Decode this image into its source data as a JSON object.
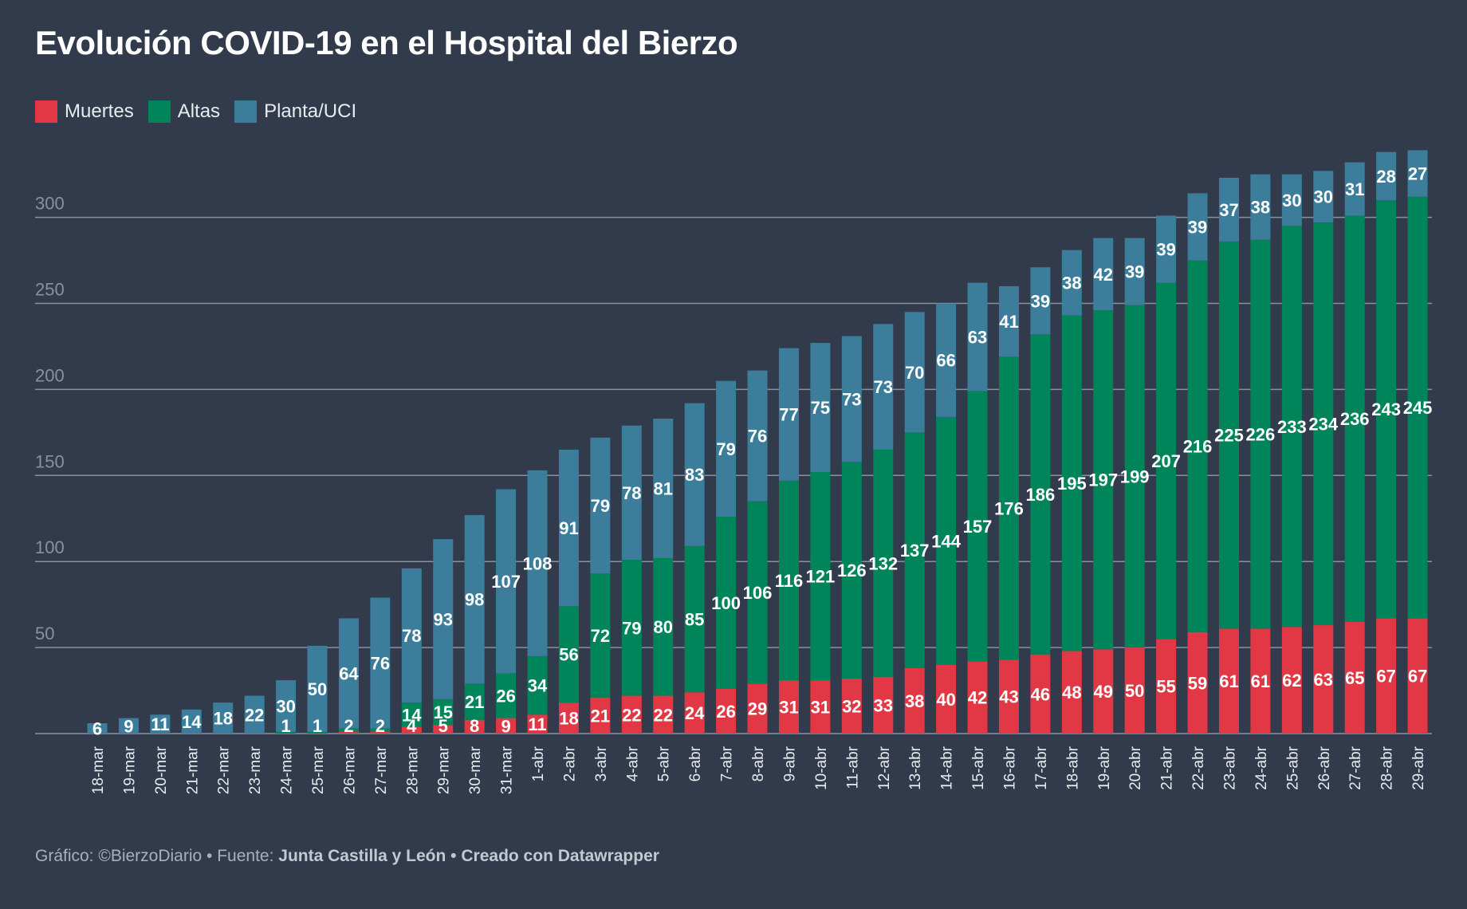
{
  "title": "Evolución COVID-19 en el Hospital del Bierzo",
  "legend": [
    {
      "label": "Muertes",
      "color": "#e23744"
    },
    {
      "label": "Altas",
      "color": "#00845a"
    },
    {
      "label": "Planta/UCI",
      "color": "#3b7d9b"
    }
  ],
  "footer": {
    "prefix": "Gráfico: ©BierzoDiario • Fuente: ",
    "source": "Junta Castilla y León",
    "separator": " • ",
    "credit": "Creado con Datawrapper"
  },
  "chart_data": {
    "type": "bar",
    "stacked": true,
    "title": "Evolución COVID-19 en el Hospital del Bierzo",
    "xlabel": "",
    "ylabel": "",
    "ylim": [
      0,
      340
    ],
    "yticks": [
      50,
      100,
      150,
      200,
      250,
      300
    ],
    "grid": true,
    "legend_position": "top-left",
    "categories": [
      "18-mar",
      "19-mar",
      "20-mar",
      "21-mar",
      "22-mar",
      "23-mar",
      "24-mar",
      "25-mar",
      "26-mar",
      "27-mar",
      "28-mar",
      "29-mar",
      "30-mar",
      "31-mar",
      "1-abr",
      "2-abr",
      "3-abr",
      "4-abr",
      "5-abr",
      "6-abr",
      "7-abr",
      "8-abr",
      "9-abr",
      "10-abr",
      "11-abr",
      "12-abr",
      "13-abr",
      "14-abr",
      "15-abr",
      "16-abr",
      "17-abr",
      "18-abr",
      "19-abr",
      "20-abr",
      "21-abr",
      "22-abr",
      "23-abr",
      "24-abr",
      "25-abr",
      "26-abr",
      "27-abr",
      "28-abr",
      "29-abr"
    ],
    "series": [
      {
        "name": "Muertes",
        "color": "#e23744",
        "values": [
          0,
          0,
          0,
          0,
          0,
          0,
          0,
          0,
          1,
          1,
          4,
          5,
          8,
          9,
          11,
          18,
          21,
          22,
          22,
          24,
          26,
          29,
          31,
          31,
          32,
          33,
          38,
          40,
          42,
          43,
          46,
          48,
          49,
          50,
          55,
          59,
          61,
          61,
          62,
          63,
          65,
          67,
          67
        ],
        "labels": [
          "",
          "",
          "",
          "",
          "",
          "",
          "",
          "",
          "",
          "",
          "4",
          "5",
          "8",
          "9",
          "11",
          "18",
          "21",
          "22",
          "22",
          "24",
          "26",
          "29",
          "31",
          "31",
          "32",
          "33",
          "38",
          "40",
          "42",
          "43",
          "46",
          "48",
          "49",
          "50",
          "55",
          "59",
          "61",
          "61",
          "62",
          "63",
          "65",
          "67",
          "67"
        ]
      },
      {
        "name": "Altas",
        "color": "#00845a",
        "values": [
          0,
          0,
          0,
          0,
          0,
          0,
          1,
          1,
          2,
          2,
          14,
          15,
          21,
          26,
          34,
          56,
          72,
          79,
          80,
          85,
          100,
          106,
          116,
          121,
          126,
          132,
          137,
          144,
          157,
          176,
          186,
          195,
          197,
          199,
          207,
          216,
          225,
          226,
          233,
          234,
          236,
          243,
          245
        ],
        "labels": [
          "",
          "",
          "",
          "",
          "",
          "",
          "1",
          "1",
          "2",
          "2",
          "14",
          "15",
          "21",
          "26",
          "34",
          "56",
          "72",
          "79",
          "80",
          "85",
          "100",
          "106",
          "116",
          "121",
          "126",
          "132",
          "137",
          "144",
          "157",
          "176",
          "186",
          "195",
          "197",
          "199",
          "207",
          "216",
          "225",
          "226",
          "233",
          "234",
          "236",
          "243",
          "245"
        ]
      },
      {
        "name": "Planta/UCI",
        "color": "#3b7d9b",
        "values": [
          6,
          9,
          11,
          14,
          18,
          22,
          30,
          50,
          64,
          76,
          78,
          93,
          98,
          107,
          108,
          91,
          79,
          78,
          81,
          83,
          79,
          76,
          77,
          75,
          73,
          73,
          70,
          66,
          63,
          41,
          39,
          38,
          42,
          39,
          39,
          39,
          37,
          38,
          30,
          30,
          31,
          28,
          27
        ],
        "labels": [
          "6",
          "9",
          "11",
          "14",
          "18",
          "22",
          "30",
          "50",
          "64",
          "76",
          "78",
          "93",
          "98",
          "107",
          "108",
          "91",
          "79",
          "78",
          "81",
          "83",
          "79",
          "76",
          "77",
          "75",
          "73",
          "73",
          "70",
          "66",
          "63",
          "41",
          "39",
          "38",
          "42",
          "39",
          "39",
          "39",
          "37",
          "38",
          "30",
          "30",
          "31",
          "28",
          "27"
        ]
      }
    ]
  }
}
